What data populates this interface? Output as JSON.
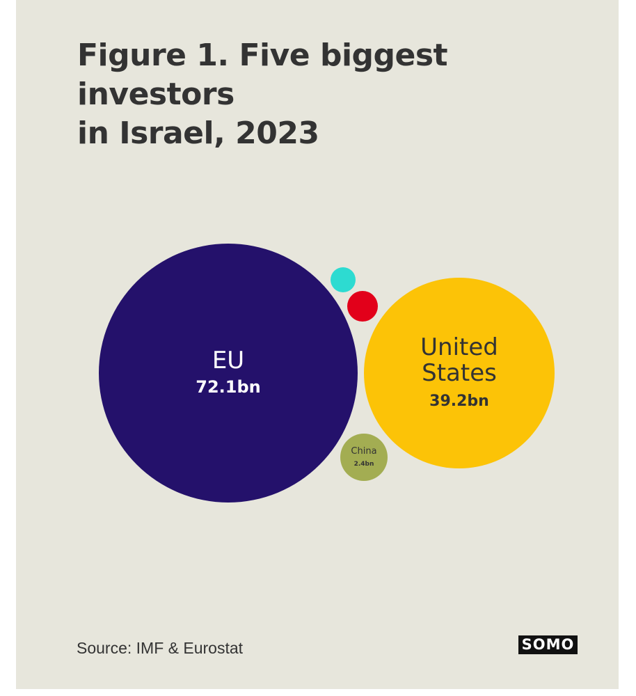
{
  "chart_data": {
    "type": "bubble",
    "title_lines": [
      "Figure 1. Five biggest investors",
      "in Israel, 2023"
    ],
    "source": "Source: IMF & Eurostat",
    "logo": "SOMO",
    "bubbles": [
      {
        "name": "EU",
        "value": 72.1,
        "value_label": "72.1bn",
        "color": "#24116b",
        "text_color": "#ffffff"
      },
      {
        "name": "United States",
        "name_lines": [
          "United",
          "States"
        ],
        "value": 39.2,
        "value_label": "39.2bn",
        "color": "#fcc307",
        "text_color": "#333333"
      },
      {
        "name": "China",
        "value": 2.4,
        "value_label": "2.4bn",
        "color": "#a3ad52",
        "text_color": "#333333"
      },
      {
        "name": "",
        "value": null,
        "value_label": "",
        "color": "#e2001a"
      },
      {
        "name": "",
        "value": null,
        "value_label": "",
        "color": "#2ddbd1"
      }
    ]
  }
}
